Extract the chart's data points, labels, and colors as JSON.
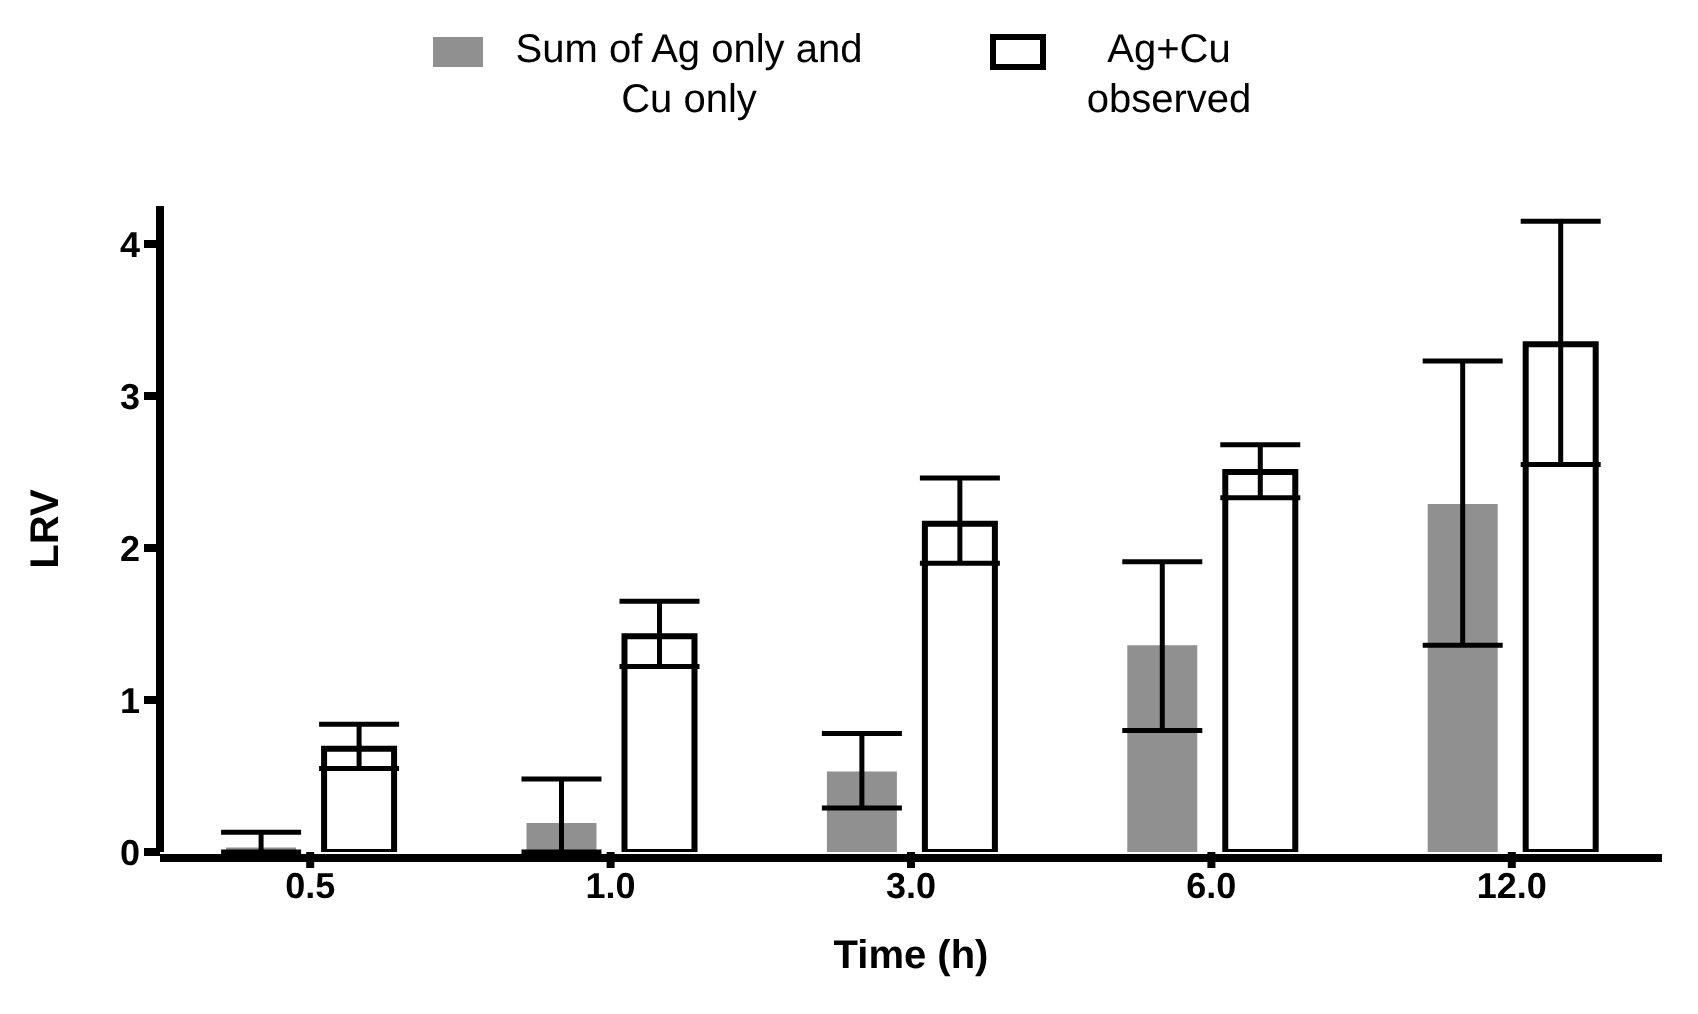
{
  "chart_data": {
    "type": "bar",
    "xlabel": "Time (h)",
    "ylabel": "LRV",
    "categories": [
      "0.5",
      "1.0",
      "3.0",
      "6.0",
      "12.0"
    ],
    "series": [
      {
        "name": "Sum of Ag only and Cu only",
        "color": "#909090",
        "values": [
          0.03,
          0.19,
          0.53,
          1.36,
          2.29
        ],
        "errors": [
          [
            0,
            0.13
          ],
          [
            0,
            0.48
          ],
          [
            0.29,
            0.78
          ],
          [
            0.8,
            1.91
          ],
          [
            1.36,
            3.23
          ]
        ]
      },
      {
        "name": "Ag+Cu observed",
        "color": "#ffffff",
        "values": [
          0.68,
          1.42,
          2.16,
          2.5,
          3.34
        ],
        "errors": [
          [
            0.55,
            0.84
          ],
          [
            1.22,
            1.65
          ],
          [
            1.9,
            2.46
          ],
          [
            2.33,
            2.68
          ],
          [
            2.55,
            4.15
          ]
        ]
      }
    ],
    "ylim": [
      0,
      4.25
    ],
    "yticks": [
      0,
      1,
      2,
      3,
      4
    ],
    "grid": false,
    "legend": "top"
  }
}
